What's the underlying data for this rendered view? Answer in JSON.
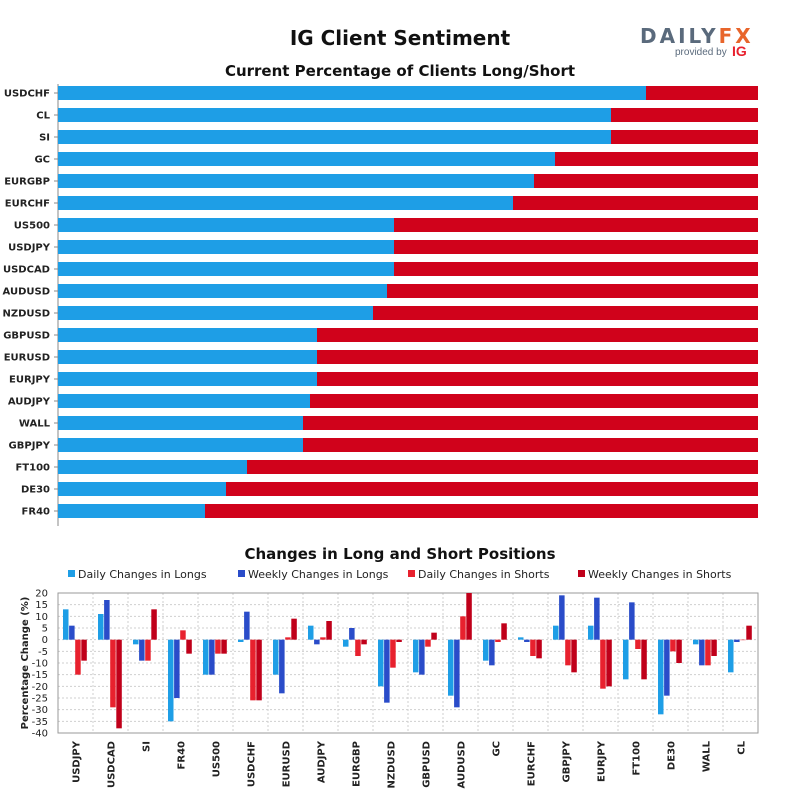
{
  "header": {
    "title": "IG Client Sentiment",
    "logo_word_a": "DAILY",
    "logo_word_b": "FX",
    "logo_provided": "provided by",
    "logo_ig": "IG"
  },
  "colors": {
    "long": "#1e9ee6",
    "short": "#d0021b",
    "daily_longs": "#1e9ee6",
    "weekly_longs": "#2a4cc9",
    "daily_shorts": "#e8212e",
    "weekly_shorts": "#c0001a"
  },
  "chart_data": [
    {
      "type": "bar",
      "orientation": "horizontal-stacked",
      "title": "Current Percentage of Clients Long/Short",
      "categories": [
        "USDCHF",
        "CL",
        "SI",
        "GC",
        "EURGBP",
        "EURCHF",
        "US500",
        "USDJPY",
        "USDCAD",
        "AUDUSD",
        "NZDUSD",
        "GBPUSD",
        "EURUSD",
        "EURJPY",
        "AUDJPY",
        "WALL",
        "GBPJPY",
        "FT100",
        "DE30",
        "FR40"
      ],
      "series": [
        {
          "values": [
            84,
            79,
            79,
            71,
            68,
            65,
            48,
            48,
            48,
            47,
            45,
            37,
            37,
            37,
            36,
            35,
            35,
            27,
            24,
            21
          ]
        },
        {
          "values": [
            16,
            21,
            21,
            29,
            32,
            35,
            52,
            52,
            52,
            53,
            55,
            63,
            63,
            63,
            64,
            65,
            65,
            73,
            76,
            79
          ]
        }
      ],
      "xlim": [
        0,
        100
      ]
    },
    {
      "type": "bar",
      "title": "Changes in Long and Short Positions",
      "ylabel": "Percentage Change (%)",
      "ylim": [
        -40,
        20
      ],
      "yticks": [
        20,
        15,
        10,
        5,
        0,
        -5,
        -10,
        -15,
        -20,
        -25,
        -30,
        -35,
        -40
      ],
      "grid": true,
      "legend": "top",
      "categories": [
        "USDJPY",
        "USDCAD",
        "SI",
        "FR40",
        "US500",
        "USDCHF",
        "EURUSD",
        "AUDJPY",
        "EURGBP",
        "NZDUSD",
        "GBPUSD",
        "AUDUSD",
        "GC",
        "EURCHF",
        "GBPJPY",
        "EURJPY",
        "FT100",
        "DE30",
        "WALL",
        "CL"
      ],
      "series": [
        {
          "name": "Daily Changes in Longs",
          "values": [
            13,
            11,
            -2,
            -35,
            -15,
            -1,
            -15,
            6,
            -3,
            -20,
            -14,
            -24,
            -9,
            1,
            6,
            6,
            -17,
            -32,
            -2,
            -14
          ]
        },
        {
          "name": "Weekly Changes in Longs",
          "values": [
            6,
            17,
            -9,
            -25,
            -15,
            12,
            -23,
            -2,
            5,
            -27,
            -15,
            -29,
            -11,
            -1,
            19,
            18,
            16,
            -24,
            -11,
            -1
          ]
        },
        {
          "name": "Daily Changes in Shorts",
          "values": [
            -15,
            -29,
            -9,
            4,
            -6,
            -26,
            1,
            1,
            -7,
            -12,
            -3,
            10,
            -1,
            -7,
            -11,
            -21,
            -4,
            -5,
            -11,
            0
          ]
        },
        {
          "name": "Weekly Changes in Shorts",
          "values": [
            -9,
            -38,
            13,
            -6,
            -6,
            -26,
            9,
            8,
            -2,
            -1,
            3,
            20,
            7,
            -8,
            -14,
            -20,
            -17,
            -10,
            -7,
            6
          ]
        }
      ]
    }
  ]
}
